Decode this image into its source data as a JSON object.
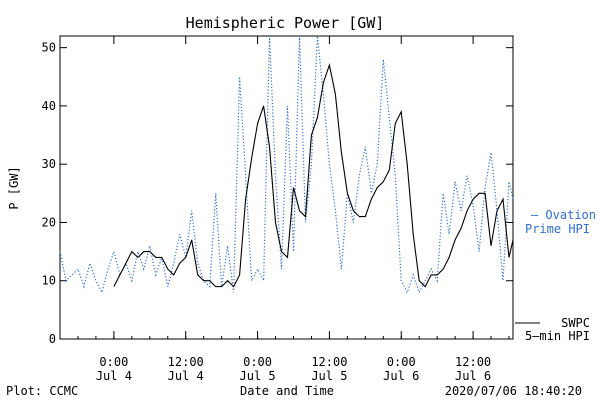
{
  "chart_data": {
    "type": "line",
    "title": "Hemispheric Power [GW]",
    "xlabel": "Date and Time",
    "ylabel": "P [GW]",
    "ylim": [
      0,
      52
    ],
    "xlim": [
      "2020-07-03T15:00",
      "2020-07-06T18:40"
    ],
    "grid": false,
    "y_ticks": [
      0,
      10,
      20,
      30,
      40,
      50
    ],
    "x_ticks": [
      {
        "t": "2020-07-04T00:00",
        "time": "0:00",
        "date": "Jul 4"
      },
      {
        "t": "2020-07-04T12:00",
        "time": "12:00",
        "date": "Jul 4"
      },
      {
        "t": "2020-07-05T00:00",
        "time": "0:00",
        "date": "Jul 5"
      },
      {
        "t": "2020-07-05T12:00",
        "time": "12:00",
        "date": "Jul 5"
      },
      {
        "t": "2020-07-06T00:00",
        "time": "0:00",
        "date": "Jul 6"
      },
      {
        "t": "2020-07-06T12:00",
        "time": "12:00",
        "date": "Jul 6"
      }
    ],
    "series": [
      {
        "name": "Ovation Prime HPI",
        "label_lines": [
          "— Ovation",
          "Prime HPI"
        ],
        "color": "#2f6fcf",
        "style": "dotted",
        "points": [
          [
            "2020-07-03T15:00",
            15
          ],
          [
            "2020-07-03T16:00",
            10
          ],
          [
            "2020-07-03T17:00",
            11
          ],
          [
            "2020-07-03T18:00",
            12
          ],
          [
            "2020-07-03T19:00",
            9
          ],
          [
            "2020-07-03T20:00",
            13
          ],
          [
            "2020-07-03T21:00",
            10
          ],
          [
            "2020-07-03T22:00",
            8
          ],
          [
            "2020-07-03T23:00",
            12
          ],
          [
            "2020-07-04T00:00",
            15
          ],
          [
            "2020-07-04T01:00",
            11
          ],
          [
            "2020-07-04T02:00",
            13
          ],
          [
            "2020-07-04T03:00",
            10
          ],
          [
            "2020-07-04T04:00",
            15
          ],
          [
            "2020-07-04T05:00",
            12
          ],
          [
            "2020-07-04T06:00",
            16
          ],
          [
            "2020-07-04T07:00",
            11
          ],
          [
            "2020-07-04T08:00",
            14
          ],
          [
            "2020-07-04T09:00",
            9
          ],
          [
            "2020-07-04T10:00",
            13
          ],
          [
            "2020-07-04T11:00",
            18
          ],
          [
            "2020-07-04T12:00",
            14
          ],
          [
            "2020-07-04T13:00",
            22
          ],
          [
            "2020-07-04T14:00",
            13
          ],
          [
            "2020-07-04T15:00",
            10
          ],
          [
            "2020-07-04T16:00",
            9
          ],
          [
            "2020-07-04T17:00",
            25
          ],
          [
            "2020-07-04T18:00",
            9
          ],
          [
            "2020-07-04T19:00",
            16
          ],
          [
            "2020-07-04T20:00",
            8
          ],
          [
            "2020-07-04T21:00",
            45
          ],
          [
            "2020-07-04T22:00",
            28
          ],
          [
            "2020-07-04T23:00",
            10
          ],
          [
            "2020-07-05T00:00",
            12
          ],
          [
            "2020-07-05T01:00",
            10
          ],
          [
            "2020-07-05T02:00",
            52
          ],
          [
            "2020-07-05T03:00",
            28
          ],
          [
            "2020-07-05T04:00",
            12
          ],
          [
            "2020-07-05T05:00",
            40
          ],
          [
            "2020-07-05T06:00",
            15
          ],
          [
            "2020-07-05T07:00",
            52
          ],
          [
            "2020-07-05T08:00",
            20
          ],
          [
            "2020-07-05T09:00",
            30
          ],
          [
            "2020-07-05T10:00",
            52
          ],
          [
            "2020-07-05T11:00",
            42
          ],
          [
            "2020-07-05T12:00",
            30
          ],
          [
            "2020-07-05T13:00",
            22
          ],
          [
            "2020-07-05T14:00",
            12
          ],
          [
            "2020-07-05T15:00",
            25
          ],
          [
            "2020-07-05T16:00",
            20
          ],
          [
            "2020-07-05T17:00",
            28
          ],
          [
            "2020-07-05T18:00",
            33
          ],
          [
            "2020-07-05T19:00",
            25
          ],
          [
            "2020-07-05T20:00",
            30
          ],
          [
            "2020-07-05T21:00",
            48
          ],
          [
            "2020-07-05T22:00",
            38
          ],
          [
            "2020-07-05T23:00",
            28
          ],
          [
            "2020-07-06T00:00",
            10
          ],
          [
            "2020-07-06T01:00",
            8
          ],
          [
            "2020-07-06T02:00",
            11
          ],
          [
            "2020-07-06T03:00",
            8
          ],
          [
            "2020-07-06T04:00",
            10
          ],
          [
            "2020-07-06T05:00",
            12
          ],
          [
            "2020-07-06T06:00",
            10
          ],
          [
            "2020-07-06T07:00",
            25
          ],
          [
            "2020-07-06T08:00",
            18
          ],
          [
            "2020-07-06T09:00",
            27
          ],
          [
            "2020-07-06T10:00",
            22
          ],
          [
            "2020-07-06T11:00",
            28
          ],
          [
            "2020-07-06T12:00",
            23
          ],
          [
            "2020-07-06T13:00",
            15
          ],
          [
            "2020-07-06T14:00",
            26
          ],
          [
            "2020-07-06T15:00",
            32
          ],
          [
            "2020-07-06T16:00",
            22
          ],
          [
            "2020-07-06T17:00",
            10
          ],
          [
            "2020-07-06T18:00",
            27
          ],
          [
            "2020-07-06T18:40",
            24
          ]
        ]
      },
      {
        "name": "SWPC 5-min HPI",
        "label_lines": [
          "SWPC",
          "5—min HPI"
        ],
        "color": "#000000",
        "style": "solid",
        "points": [
          [
            "2020-07-04T00:00",
            9
          ],
          [
            "2020-07-04T01:00",
            11
          ],
          [
            "2020-07-04T02:00",
            13
          ],
          [
            "2020-07-04T03:00",
            15
          ],
          [
            "2020-07-04T04:00",
            14
          ],
          [
            "2020-07-04T05:00",
            15
          ],
          [
            "2020-07-04T06:00",
            15
          ],
          [
            "2020-07-04T07:00",
            14
          ],
          [
            "2020-07-04T08:00",
            14
          ],
          [
            "2020-07-04T09:00",
            12
          ],
          [
            "2020-07-04T10:00",
            11
          ],
          [
            "2020-07-04T11:00",
            13
          ],
          [
            "2020-07-04T12:00",
            14
          ],
          [
            "2020-07-04T13:00",
            17
          ],
          [
            "2020-07-04T14:00",
            11
          ],
          [
            "2020-07-04T15:00",
            10
          ],
          [
            "2020-07-04T16:00",
            10
          ],
          [
            "2020-07-04T17:00",
            9
          ],
          [
            "2020-07-04T18:00",
            9
          ],
          [
            "2020-07-04T19:00",
            10
          ],
          [
            "2020-07-04T20:00",
            9
          ],
          [
            "2020-07-04T21:00",
            11
          ],
          [
            "2020-07-04T22:00",
            24
          ],
          [
            "2020-07-04T23:00",
            31
          ],
          [
            "2020-07-05T00:00",
            37
          ],
          [
            "2020-07-05T01:00",
            40
          ],
          [
            "2020-07-05T02:00",
            33
          ],
          [
            "2020-07-05T03:00",
            20
          ],
          [
            "2020-07-05T04:00",
            15
          ],
          [
            "2020-07-05T05:00",
            14
          ],
          [
            "2020-07-05T06:00",
            26
          ],
          [
            "2020-07-05T07:00",
            22
          ],
          [
            "2020-07-05T08:00",
            21
          ],
          [
            "2020-07-05T09:00",
            35
          ],
          [
            "2020-07-05T10:00",
            38
          ],
          [
            "2020-07-05T11:00",
            44
          ],
          [
            "2020-07-05T12:00",
            47
          ],
          [
            "2020-07-05T13:00",
            42
          ],
          [
            "2020-07-05T14:00",
            32
          ],
          [
            "2020-07-05T15:00",
            25
          ],
          [
            "2020-07-05T16:00",
            22
          ],
          [
            "2020-07-05T17:00",
            21
          ],
          [
            "2020-07-05T18:00",
            21
          ],
          [
            "2020-07-05T19:00",
            24
          ],
          [
            "2020-07-05T20:00",
            26
          ],
          [
            "2020-07-05T21:00",
            27
          ],
          [
            "2020-07-05T22:00",
            29
          ],
          [
            "2020-07-05T23:00",
            37
          ],
          [
            "2020-07-06T00:00",
            39
          ],
          [
            "2020-07-06T01:00",
            30
          ],
          [
            "2020-07-06T02:00",
            18
          ],
          [
            "2020-07-06T03:00",
            10
          ],
          [
            "2020-07-06T04:00",
            9
          ],
          [
            "2020-07-06T05:00",
            11
          ],
          [
            "2020-07-06T06:00",
            11
          ],
          [
            "2020-07-06T07:00",
            12
          ],
          [
            "2020-07-06T08:00",
            14
          ],
          [
            "2020-07-06T09:00",
            17
          ],
          [
            "2020-07-06T10:00",
            19
          ],
          [
            "2020-07-06T11:00",
            22
          ],
          [
            "2020-07-06T12:00",
            24
          ],
          [
            "2020-07-06T13:00",
            25
          ],
          [
            "2020-07-06T14:00",
            25
          ],
          [
            "2020-07-06T15:00",
            16
          ],
          [
            "2020-07-06T16:00",
            22
          ],
          [
            "2020-07-06T17:00",
            24
          ],
          [
            "2020-07-06T18:00",
            14
          ],
          [
            "2020-07-06T18:40",
            17
          ]
        ]
      }
    ]
  },
  "footer": {
    "left": "Plot: CCMC",
    "center": "Date and Time",
    "right": "2020/07/06 18:40:20"
  }
}
